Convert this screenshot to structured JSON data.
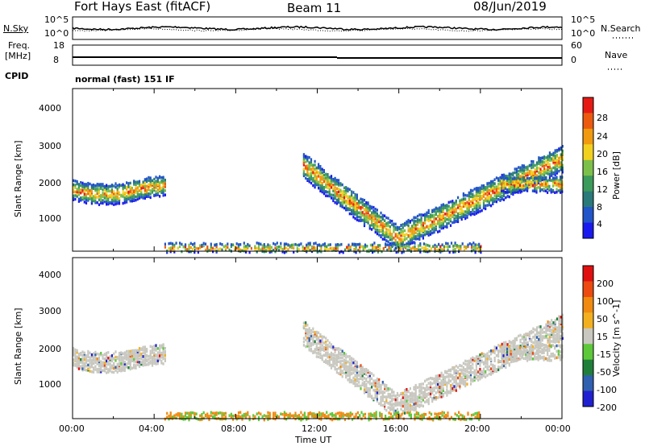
{
  "header": {
    "station": "Fort Hays East (fitACF)",
    "beam": "Beam 11",
    "date": "08/Jun/2019"
  },
  "top_panels": {
    "nsky_label": "N.Sky",
    "nsearch_label": "N.Search",
    "noise_ticks": [
      "10^5",
      "10^0"
    ],
    "noise_ticks_right": [
      "10^5",
      "10^0"
    ],
    "freq_label_1": "Freq.",
    "freq_label_2": "[MHz]",
    "freq_ticks": [
      "18",
      "8"
    ],
    "nave_label": "Nave",
    "nave_ticks": [
      "60",
      "0"
    ],
    "cpid_label": "CPID",
    "cpid_value": "normal (fast) 151 IF"
  },
  "chart_data": [
    {
      "type": "heatmap",
      "title": "",
      "ylabel": "Slant Range [km]",
      "xlabel": "",
      "yticks": [
        "4000",
        "3000",
        "2000",
        "1000"
      ],
      "ylim": [
        180,
        4500
      ],
      "xlim": [
        "00:00",
        "24:00"
      ],
      "colorbar": {
        "label": "Power [dB]",
        "ticks": [
          "28",
          "24",
          "20",
          "16",
          "12",
          "8",
          "4"
        ],
        "range": [
          0,
          30
        ]
      }
    },
    {
      "type": "heatmap",
      "title": "",
      "ylabel": "Slant Range [km]",
      "xlabel": "Time UT",
      "yticks": [
        "4000",
        "3000",
        "2000",
        "1000"
      ],
      "xticks": [
        "00:00",
        "04:00",
        "08:00",
        "12:00",
        "16:00",
        "20:00",
        "00:00"
      ],
      "ylim": [
        180,
        4500
      ],
      "xlim": [
        "00:00",
        "24:00"
      ],
      "colorbar": {
        "label": "Velocity [m s^-1]",
        "ticks": [
          "200",
          "100",
          "50",
          "15",
          "-15",
          "-50",
          "-100",
          "-200"
        ]
      }
    }
  ],
  "colors": {
    "power_scale": [
      "#1a1aee",
      "#2255c8",
      "#2a7a7a",
      "#3c9a5a",
      "#7cc04a",
      "#f2d020",
      "#f09a10",
      "#ec5a10",
      "#e61a14"
    ],
    "velocity_scale": [
      "#2020d0",
      "#3060b0",
      "#1f7f3a",
      "#5dc83a",
      "#c8c8c0",
      "#f2b020",
      "#f08a10",
      "#ec4a10",
      "#e01010"
    ]
  }
}
